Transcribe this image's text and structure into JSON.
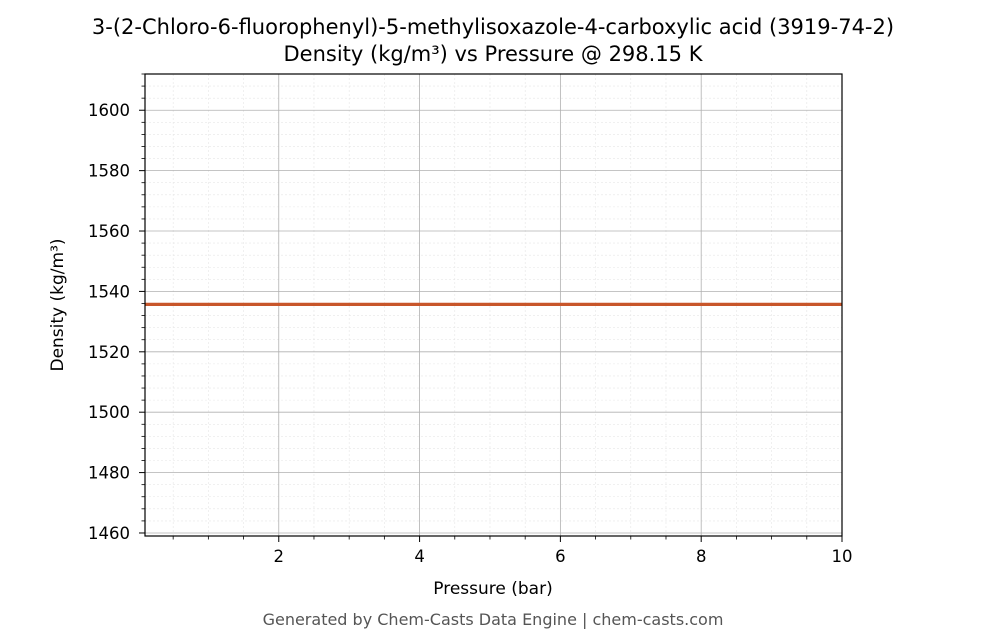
{
  "chart_data": {
    "type": "line",
    "title": "3-(2-Chloro-6-fluorophenyl)-5-methylisoxazole-4-carboxylic acid (3919-74-2)",
    "subtitle": "Density (kg/m³) vs Pressure @ 298.15 K",
    "xlabel": "Pressure (bar)",
    "ylabel": "Density (kg/m³)",
    "xlim": [
      0.1,
      10
    ],
    "ylim": [
      1459,
      1612
    ],
    "x_ticks": [
      2,
      4,
      6,
      8,
      10
    ],
    "y_ticks": [
      1460,
      1480,
      1500,
      1520,
      1540,
      1560,
      1580,
      1600
    ],
    "grid": true,
    "series": [
      {
        "color": "#c8562a",
        "x": [
          0.1,
          1,
          2,
          3,
          4,
          5,
          6,
          7,
          8,
          9,
          10
        ],
        "y": [
          1535.7,
          1535.7,
          1535.7,
          1535.7,
          1535.7,
          1535.7,
          1535.7,
          1535.7,
          1535.7,
          1535.7,
          1535.7
        ]
      }
    ],
    "footer": "Generated by Chem-Casts Data Engine | chem-casts.com"
  }
}
